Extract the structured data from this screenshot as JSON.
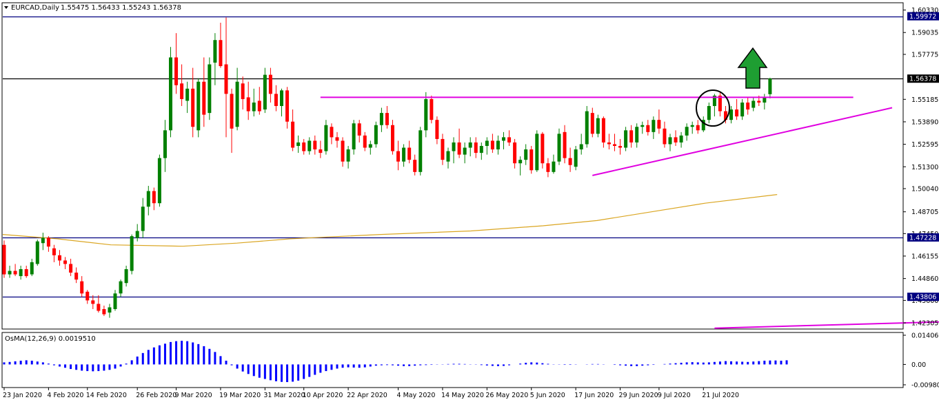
{
  "header": {
    "symbol": "EURCAD,Daily",
    "ohlc": "1.55475 1.56433 1.55243 1.56378"
  },
  "indicator": {
    "label": "OsMA(12,26,9) 0.0019510",
    "axis_labels": [
      "0.0140691",
      "0.00",
      "-0.0098066"
    ]
  },
  "price_lines": [
    {
      "label": "1.59972",
      "price": 1.59972,
      "color": "#000080"
    },
    {
      "label": "1.56378",
      "price": 1.56378,
      "color": "#000000"
    },
    {
      "label": "1.47228",
      "price": 1.47228,
      "color": "#000080"
    },
    {
      "label": "1.43806",
      "price": 1.43806,
      "color": "#000080"
    }
  ],
  "colors": {
    "bull": "#008000",
    "bear": "#ff0000",
    "ma": "#daa520",
    "trendline": "#e000e0",
    "histogram": "#0000ff",
    "arrow": "#1e9e32"
  },
  "chart_data": {
    "type": "candlestick",
    "ylim": [
      1.4195,
      1.6075
    ],
    "y_ticks": [
      "1.60330",
      "1.59035",
      "1.57775",
      "1.55185",
      "1.53890",
      "1.52595",
      "1.51300",
      "1.50040",
      "1.48705",
      "1.47450",
      "1.46155",
      "1.44860",
      "1.43600",
      "1.42305"
    ],
    "x_ticks": [
      "23 Jan 2020",
      "4 Feb 2020",
      "14 Feb 2020",
      "26 Feb 2020",
      "9 Mar 2020",
      "19 Mar 2020",
      "31 Mar 2020",
      "10 Apr 2020",
      "22 Apr 2020",
      "4 May 2020",
      "14 May 2020",
      "26 May 2020",
      "5 Jun 2020",
      "17 Jun 2020",
      "29 Jun 2020",
      "9 Jul 2020",
      "21 Jul 2020"
    ],
    "candles": [
      [
        1.468,
        1.4705,
        1.449,
        1.451
      ],
      [
        1.451,
        1.456,
        1.449,
        1.453
      ],
      [
        1.453,
        1.457,
        1.45,
        1.451
      ],
      [
        1.45,
        1.456,
        1.448,
        1.454
      ],
      [
        1.454,
        1.456,
        1.449,
        1.45
      ],
      [
        1.451,
        1.46,
        1.45,
        1.458
      ],
      [
        1.457,
        1.471,
        1.456,
        1.47
      ],
      [
        1.469,
        1.475,
        1.465,
        1.472
      ],
      [
        1.472,
        1.473,
        1.464,
        1.467
      ],
      [
        1.466,
        1.468,
        1.458,
        1.462
      ],
      [
        1.462,
        1.465,
        1.456,
        1.459
      ],
      [
        1.459,
        1.461,
        1.454,
        1.457
      ],
      [
        1.457,
        1.46,
        1.45,
        1.452
      ],
      [
        1.452,
        1.455,
        1.446,
        1.448
      ],
      [
        1.447,
        1.45,
        1.438,
        1.44
      ],
      [
        1.441,
        1.442,
        1.434,
        1.436
      ],
      [
        1.436,
        1.439,
        1.431,
        1.434
      ],
      [
        1.434,
        1.439,
        1.429,
        1.43
      ],
      [
        1.431,
        1.433,
        1.427,
        1.428
      ],
      [
        1.429,
        1.434,
        1.426,
        1.432
      ],
      [
        1.431,
        1.442,
        1.43,
        1.44
      ],
      [
        1.44,
        1.448,
        1.438,
        1.447
      ],
      [
        1.446,
        1.456,
        1.444,
        1.454
      ],
      [
        1.453,
        1.474,
        1.451,
        1.473
      ],
      [
        1.472,
        1.48,
        1.47,
        1.476
      ],
      [
        1.476,
        1.495,
        1.472,
        1.49
      ],
      [
        1.49,
        1.502,
        1.485,
        1.499
      ],
      [
        1.499,
        1.501,
        1.488,
        1.492
      ],
      [
        1.492,
        1.52,
        1.49,
        1.518
      ],
      [
        1.518,
        1.54,
        1.51,
        1.534
      ],
      [
        1.534,
        1.582,
        1.53,
        1.576
      ],
      [
        1.576,
        1.59,
        1.555,
        1.56
      ],
      [
        1.561,
        1.572,
        1.548,
        1.552
      ],
      [
        1.551,
        1.562,
        1.544,
        1.558
      ],
      [
        1.558,
        1.57,
        1.53,
        1.536
      ],
      [
        1.534,
        1.564,
        1.53,
        1.562
      ],
      [
        1.562,
        1.576,
        1.536,
        1.543
      ],
      [
        1.544,
        1.576,
        1.54,
        1.572
      ],
      [
        1.573,
        1.59,
        1.56,
        1.586
      ],
      [
        1.586,
        1.596,
        1.57,
        1.571
      ],
      [
        1.572,
        1.599,
        1.53,
        1.555
      ],
      [
        1.555,
        1.558,
        1.521,
        1.535
      ],
      [
        1.536,
        1.57,
        1.534,
        1.562
      ],
      [
        1.561,
        1.565,
        1.546,
        1.552
      ],
      [
        1.553,
        1.562,
        1.54,
        1.545
      ],
      [
        1.545,
        1.558,
        1.542,
        1.55
      ],
      [
        1.551,
        1.559,
        1.543,
        1.545
      ],
      [
        1.546,
        1.57,
        1.544,
        1.566
      ],
      [
        1.566,
        1.57,
        1.55,
        1.555
      ],
      [
        1.555,
        1.56,
        1.545,
        1.548
      ],
      [
        1.548,
        1.558,
        1.542,
        1.557
      ],
      [
        1.557,
        1.559,
        1.535,
        1.539
      ],
      [
        1.539,
        1.546,
        1.522,
        1.524
      ],
      [
        1.525,
        1.531,
        1.521,
        1.527
      ],
      [
        1.527,
        1.529,
        1.52,
        1.522
      ],
      [
        1.522,
        1.53,
        1.52,
        1.528
      ],
      [
        1.528,
        1.531,
        1.52,
        1.523
      ],
      [
        1.523,
        1.528,
        1.518,
        1.521
      ],
      [
        1.522,
        1.54,
        1.52,
        1.537
      ],
      [
        1.536,
        1.538,
        1.526,
        1.53
      ],
      [
        1.53,
        1.533,
        1.524,
        1.528
      ],
      [
        1.528,
        1.53,
        1.513,
        1.516
      ],
      [
        1.516,
        1.525,
        1.512,
        1.523
      ],
      [
        1.523,
        1.54,
        1.52,
        1.538
      ],
      [
        1.538,
        1.54,
        1.527,
        1.531
      ],
      [
        1.531,
        1.533,
        1.522,
        1.524
      ],
      [
        1.524,
        1.528,
        1.52,
        1.526
      ],
      [
        1.526,
        1.539,
        1.524,
        1.537
      ],
      [
        1.537,
        1.547,
        1.533,
        1.544
      ],
      [
        1.544,
        1.548,
        1.535,
        1.537
      ],
      [
        1.537,
        1.54,
        1.52,
        1.522
      ],
      [
        1.522,
        1.528,
        1.511,
        1.516
      ],
      [
        1.516,
        1.526,
        1.513,
        1.524
      ],
      [
        1.524,
        1.528,
        1.515,
        1.517
      ],
      [
        1.517,
        1.52,
        1.508,
        1.51
      ],
      [
        1.51,
        1.536,
        1.508,
        1.534
      ],
      [
        1.534,
        1.556,
        1.53,
        1.552
      ],
      [
        1.552,
        1.554,
        1.538,
        1.54
      ],
      [
        1.54,
        1.542,
        1.526,
        1.529
      ],
      [
        1.529,
        1.532,
        1.514,
        1.517
      ],
      [
        1.516,
        1.524,
        1.512,
        1.522
      ],
      [
        1.522,
        1.53,
        1.515,
        1.527
      ],
      [
        1.527,
        1.535,
        1.518,
        1.52
      ],
      [
        1.52,
        1.527,
        1.515,
        1.524
      ],
      [
        1.524,
        1.53,
        1.519,
        1.527
      ],
      [
        1.527,
        1.53,
        1.518,
        1.521
      ],
      [
        1.521,
        1.527,
        1.517,
        1.525
      ],
      [
        1.525,
        1.53,
        1.52,
        1.528
      ],
      [
        1.528,
        1.532,
        1.521,
        1.523
      ],
      [
        1.523,
        1.531,
        1.52,
        1.528
      ],
      [
        1.528,
        1.533,
        1.523,
        1.53
      ],
      [
        1.53,
        1.534,
        1.525,
        1.527
      ],
      [
        1.527,
        1.529,
        1.512,
        1.515
      ],
      [
        1.515,
        1.519,
        1.508,
        1.517
      ],
      [
        1.517,
        1.526,
        1.514,
        1.523
      ],
      [
        1.523,
        1.525,
        1.509,
        1.511
      ],
      [
        1.511,
        1.534,
        1.51,
        1.532
      ],
      [
        1.532,
        1.533,
        1.512,
        1.515
      ],
      [
        1.515,
        1.518,
        1.507,
        1.51
      ],
      [
        1.51,
        1.52,
        1.509,
        1.516
      ],
      [
        1.516,
        1.535,
        1.514,
        1.532
      ],
      [
        1.533,
        1.537,
        1.515,
        1.518
      ],
      [
        1.518,
        1.524,
        1.51,
        1.514
      ],
      [
        1.513,
        1.525,
        1.511,
        1.523
      ],
      [
        1.523,
        1.532,
        1.52,
        1.526
      ],
      [
        1.526,
        1.548,
        1.524,
        1.545
      ],
      [
        1.544,
        1.547,
        1.53,
        1.532
      ],
      [
        1.532,
        1.543,
        1.53,
        1.541
      ],
      [
        1.541,
        1.542,
        1.524,
        1.527
      ],
      [
        1.527,
        1.532,
        1.523,
        1.526
      ],
      [
        1.526,
        1.532,
        1.522,
        1.525
      ],
      [
        1.525,
        1.529,
        1.52,
        1.524
      ],
      [
        1.524,
        1.536,
        1.522,
        1.534
      ],
      [
        1.534,
        1.537,
        1.524,
        1.527
      ],
      [
        1.527,
        1.538,
        1.524,
        1.536
      ],
      [
        1.536,
        1.539,
        1.532,
        1.537
      ],
      [
        1.537,
        1.54,
        1.531,
        1.533
      ],
      [
        1.533,
        1.542,
        1.529,
        1.54
      ],
      [
        1.54,
        1.546,
        1.532,
        1.535
      ],
      [
        1.535,
        1.539,
        1.524,
        1.526
      ],
      [
        1.526,
        1.532,
        1.522,
        1.53
      ],
      [
        1.53,
        1.534,
        1.525,
        1.527
      ],
      [
        1.527,
        1.533,
        1.524,
        1.531
      ],
      [
        1.531,
        1.538,
        1.528,
        1.536
      ],
      [
        1.536,
        1.539,
        1.532,
        1.537
      ],
      [
        1.537,
        1.54,
        1.532,
        1.534
      ],
      [
        1.534,
        1.542,
        1.533,
        1.54
      ],
      [
        1.54,
        1.55,
        1.538,
        1.548
      ],
      [
        1.548,
        1.555,
        1.542,
        1.554
      ],
      [
        1.554,
        1.556,
        1.542,
        1.545
      ],
      [
        1.545,
        1.548,
        1.538,
        1.54
      ],
      [
        1.54,
        1.548,
        1.538,
        1.546
      ],
      [
        1.546,
        1.552,
        1.54,
        1.542
      ],
      [
        1.542,
        1.552,
        1.54,
        1.55
      ],
      [
        1.55,
        1.553,
        1.543,
        1.546
      ],
      [
        1.547,
        1.553,
        1.545,
        1.551
      ],
      [
        1.551,
        1.554,
        1.548,
        1.55
      ],
      [
        1.55,
        1.555,
        1.546,
        1.553
      ],
      [
        1.5548,
        1.5643,
        1.5524,
        1.5638
      ]
    ],
    "ma_points": [
      [
        1.474,
        0
      ],
      [
        1.4715,
        0.06
      ],
      [
        1.468,
        0.12
      ],
      [
        1.4672,
        0.2
      ],
      [
        1.469,
        0.26
      ],
      [
        1.4715,
        0.32
      ],
      [
        1.474,
        0.42
      ],
      [
        1.476,
        0.52
      ],
      [
        1.479,
        0.6
      ],
      [
        1.482,
        0.66
      ],
      [
        1.487,
        0.72
      ],
      [
        1.492,
        0.78
      ],
      [
        1.497,
        0.86
      ]
    ],
    "trendlines": [
      {
        "from": [
          57,
          1.553
        ],
        "to": [
          153,
          1.553
        ]
      },
      {
        "from": [
          106,
          1.508
        ],
        "to": [
          160,
          1.547
        ]
      },
      {
        "from": [
          128,
          1.42
        ],
        "to": [
          190,
          1.4255
        ]
      }
    ],
    "osma": {
      "ylim": [
        -0.0098066,
        0.0140691
      ],
      "values": [
        0.001,
        0.0012,
        0.0015,
        0.0018,
        0.002,
        0.0018,
        0.0014,
        0.001,
        0.0004,
        -0.0004,
        -0.001,
        -0.0016,
        -0.0022,
        -0.0026,
        -0.003,
        -0.0032,
        -0.0033,
        -0.0032,
        -0.003,
        -0.0026,
        -0.002,
        -0.001,
        0.0004,
        0.002,
        0.0038,
        0.0055,
        0.007,
        0.0082,
        0.0092,
        0.01,
        0.0108,
        0.0112,
        0.0114,
        0.0112,
        0.0106,
        0.0098,
        0.0088,
        0.0075,
        0.006,
        0.004,
        0.0018,
        -0.0004,
        -0.002,
        -0.0034,
        -0.0046,
        -0.0056,
        -0.0064,
        -0.007,
        -0.0076,
        -0.0081,
        -0.0084,
        -0.0085,
        -0.0083,
        -0.0078,
        -0.007,
        -0.006,
        -0.005,
        -0.004,
        -0.0032,
        -0.0026,
        -0.002,
        -0.0016,
        -0.0014,
        -0.0015,
        -0.0016,
        -0.0014,
        -0.001,
        -0.0006,
        -0.0004,
        -0.0003,
        -0.0004,
        -0.0006,
        -0.0008,
        -0.0008,
        -0.0006,
        -0.0004,
        -0.0003,
        -0.0002,
        -0.0001,
        0.0001,
        0.0002,
        0.0003,
        0.0003,
        0.0002,
        0.0001,
        -0.0001,
        -0.0003,
        -0.0005,
        -0.0007,
        -0.0008,
        -0.0007,
        -0.0004,
        0.0,
        0.0004,
        0.0008,
        0.001,
        0.0009,
        0.0006,
        0.0003,
        0.0001,
        -0.0001,
        -0.0002,
        -0.0002,
        -0.0001,
        0.0,
        0.0001,
        0.0002,
        0.0002,
        0.0001,
        0.0,
        -0.0002,
        -0.0004,
        -0.0006,
        -0.0008,
        -0.0008,
        -0.0006,
        -0.0004,
        -0.0002,
        0.0,
        0.0002,
        0.0004,
        0.0006,
        0.0008,
        0.001,
        0.0011,
        0.001,
        0.0009,
        0.001,
        0.0012,
        0.0014,
        0.0016,
        0.0015,
        0.0014,
        0.0013,
        0.0012,
        0.0014,
        0.0016,
        0.0018,
        0.0019,
        0.0019,
        0.0018,
        0.002
      ]
    }
  }
}
